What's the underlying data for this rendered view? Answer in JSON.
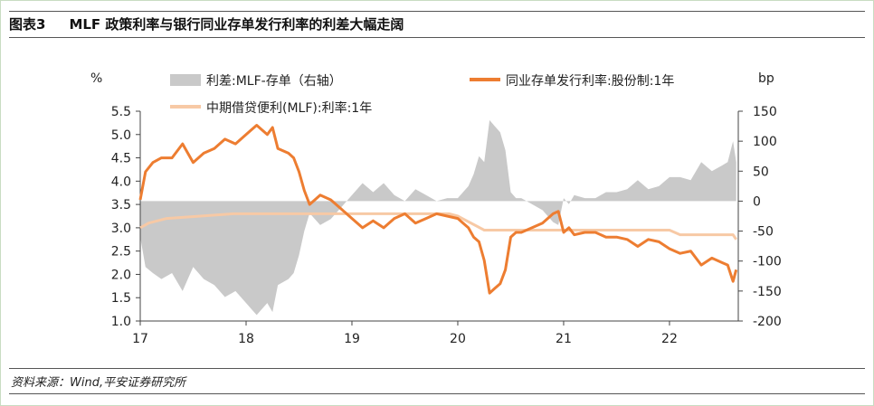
{
  "figure": {
    "label": "图表3",
    "title": "MLF 政策利率与银行同业存单发行利率的利差大幅走阔",
    "source": "资料来源：Wind,平安证券研究所"
  },
  "chart_data": {
    "type": "line",
    "left_axis_unit": "%",
    "right_axis_unit": "bp",
    "ylim_left": [
      1.0,
      5.5
    ],
    "ylim_right": [
      -200,
      150
    ],
    "yticks_left": [
      "5.5",
      "5.0",
      "4.5",
      "4.0",
      "3.5",
      "3.0",
      "2.5",
      "2.0",
      "1.5",
      "1.0"
    ],
    "yticks_right": [
      "150",
      "100",
      "50",
      "0",
      "-50",
      "-100",
      "-150",
      "-200"
    ],
    "xlim": [
      2017.0,
      2022.65
    ],
    "xticks": [
      "17",
      "18",
      "19",
      "20",
      "21",
      "22"
    ],
    "legend": [
      {
        "label": "利差:MLF-存单（右轴）",
        "style": "area",
        "color": "#c9c9c9"
      },
      {
        "label": "同业存单发行利率:股份制:1年",
        "style": "line",
        "color": "#ed7d31"
      },
      {
        "label": "中期借贷便利(MLF):利率:1年",
        "style": "line",
        "color": "#f7c9a5"
      }
    ],
    "series": [
      {
        "name": "同业存单发行利率:股份制:1年",
        "axis": "left",
        "color": "#ed7d31",
        "x": [
          2017.0,
          2017.05,
          2017.12,
          2017.2,
          2017.3,
          2017.4,
          2017.45,
          2017.5,
          2017.6,
          2017.7,
          2017.8,
          2017.9,
          2018.0,
          2018.05,
          2018.1,
          2018.15,
          2018.2,
          2018.25,
          2018.3,
          2018.4,
          2018.45,
          2018.5,
          2018.55,
          2018.6,
          2018.65,
          2018.7,
          2018.8,
          2018.9,
          2019.0,
          2019.1,
          2019.2,
          2019.3,
          2019.4,
          2019.5,
          2019.6,
          2019.7,
          2019.8,
          2019.9,
          2020.0,
          2020.05,
          2020.1,
          2020.15,
          2020.2,
          2020.25,
          2020.3,
          2020.35,
          2020.4,
          2020.45,
          2020.5,
          2020.55,
          2020.6,
          2020.7,
          2020.8,
          2020.9,
          2020.95,
          2021.0,
          2021.05,
          2021.1,
          2021.2,
          2021.3,
          2021.4,
          2021.5,
          2021.6,
          2021.7,
          2021.8,
          2021.9,
          2022.0,
          2022.1,
          2022.2,
          2022.3,
          2022.4,
          2022.5,
          2022.55,
          2022.6,
          2022.63
        ],
        "values": [
          3.6,
          4.2,
          4.4,
          4.5,
          4.5,
          4.8,
          4.6,
          4.4,
          4.6,
          4.7,
          4.9,
          4.8,
          5.0,
          5.1,
          5.2,
          5.1,
          5.0,
          5.15,
          4.7,
          4.6,
          4.5,
          4.2,
          3.8,
          3.5,
          3.6,
          3.7,
          3.6,
          3.4,
          3.2,
          3.0,
          3.15,
          3.0,
          3.2,
          3.3,
          3.1,
          3.2,
          3.3,
          3.25,
          3.2,
          3.1,
          3.0,
          2.8,
          2.7,
          2.3,
          1.6,
          1.7,
          1.8,
          2.1,
          2.8,
          2.9,
          2.9,
          3.0,
          3.1,
          3.3,
          3.35,
          2.9,
          3.0,
          2.85,
          2.9,
          2.9,
          2.8,
          2.8,
          2.75,
          2.6,
          2.75,
          2.7,
          2.55,
          2.45,
          2.5,
          2.2,
          2.35,
          2.25,
          2.2,
          1.85,
          2.1
        ]
      },
      {
        "name": "中期借贷便利(MLF):利率:1年",
        "axis": "left",
        "color": "#f7c9a5",
        "x": [
          2017.0,
          2017.08,
          2017.25,
          2017.88,
          2018.0,
          2018.25,
          2019.92,
          2020.0,
          2020.25,
          2022.0,
          2022.1,
          2022.6,
          2022.63
        ],
        "values": [
          3.0,
          3.1,
          3.2,
          3.3,
          3.3,
          3.3,
          3.3,
          3.25,
          2.95,
          2.95,
          2.85,
          2.85,
          2.75
        ]
      },
      {
        "name": "利差:MLF-存单（右轴）",
        "axis": "right",
        "color": "#c9c9c9",
        "x": [
          2017.0,
          2017.05,
          2017.12,
          2017.2,
          2017.3,
          2017.4,
          2017.45,
          2017.5,
          2017.6,
          2017.7,
          2017.8,
          2017.9,
          2018.0,
          2018.05,
          2018.1,
          2018.15,
          2018.2,
          2018.25,
          2018.3,
          2018.4,
          2018.45,
          2018.5,
          2018.55,
          2018.6,
          2018.65,
          2018.7,
          2018.8,
          2018.9,
          2019.0,
          2019.1,
          2019.2,
          2019.3,
          2019.4,
          2019.5,
          2019.6,
          2019.7,
          2019.8,
          2019.9,
          2020.0,
          2020.05,
          2020.1,
          2020.15,
          2020.2,
          2020.25,
          2020.3,
          2020.35,
          2020.4,
          2020.45,
          2020.5,
          2020.55,
          2020.6,
          2020.7,
          2020.8,
          2020.9,
          2020.95,
          2021.0,
          2021.05,
          2021.1,
          2021.2,
          2021.3,
          2021.4,
          2021.5,
          2021.6,
          2021.7,
          2021.8,
          2021.9,
          2022.0,
          2022.1,
          2022.2,
          2022.3,
          2022.4,
          2022.5,
          2022.55,
          2022.6,
          2022.63
        ],
        "values": [
          -60,
          -110,
          -120,
          -130,
          -120,
          -150,
          -130,
          -110,
          -130,
          -140,
          -160,
          -150,
          -170,
          -180,
          -190,
          -180,
          -170,
          -185,
          -140,
          -130,
          -120,
          -90,
          -50,
          -20,
          -30,
          -40,
          -30,
          -10,
          10,
          30,
          15,
          30,
          10,
          0,
          20,
          10,
          0,
          5,
          5,
          15,
          25,
          45,
          75,
          65,
          135,
          125,
          115,
          85,
          15,
          5,
          5,
          -5,
          -15,
          -35,
          -40,
          5,
          -5,
          10,
          5,
          5,
          15,
          15,
          20,
          35,
          20,
          25,
          40,
          40,
          35,
          65,
          50,
          60,
          65,
          100,
          65
        ]
      }
    ]
  }
}
